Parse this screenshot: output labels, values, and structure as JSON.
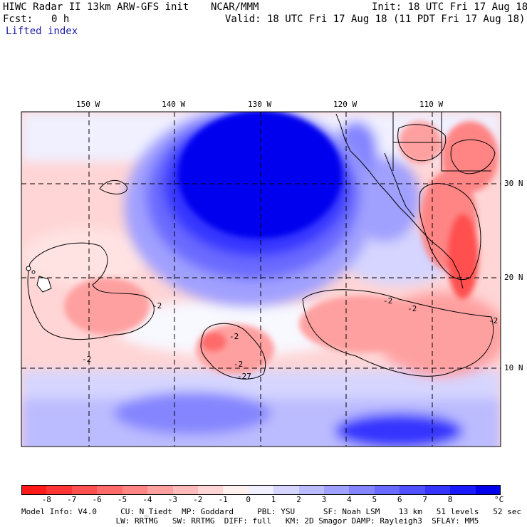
{
  "header": {
    "title": "HIWC Radar II 13km ARW-GFS init",
    "org": "NCAR/MMM",
    "init": "Init: 18 UTC Fri 17 Aug 18",
    "fcst_label": "Fcst:",
    "fcst_value": "0 h",
    "valid": "Valid: 18 UTC Fri 17 Aug 18 (11 PDT Fri 17 Aug 18)",
    "field": "Lifted index"
  },
  "map": {
    "lon_labels": [
      "150 W",
      "140 W",
      "130 W",
      "120 W",
      "110 W"
    ],
    "lat_labels": [
      "30 N",
      "20 N",
      "10 N"
    ],
    "contour_labels": [
      "-2",
      "-2",
      "-2",
      "-2",
      "-2",
      "-2",
      "-27",
      "-2"
    ],
    "colors": {
      "deep_blue": "#0000ee",
      "strong_red": "#ee2020",
      "neutral": "#ffffff"
    }
  },
  "colorbar": {
    "ticks": [
      "-8",
      "-7",
      "-6",
      "-5",
      "-4",
      "-3",
      "-2",
      "-1",
      "0",
      "1",
      "2",
      "3",
      "4",
      "5",
      "6",
      "7",
      "8"
    ],
    "unit": "°C",
    "colors": [
      "#ff1a1a",
      "#ff3535",
      "#ff5050",
      "#ff6a6a",
      "#ff8585",
      "#ffa0a0",
      "#ffbbbb",
      "#ffd5d5",
      "#fff0f0",
      "#f0f0ff",
      "#d5d5ff",
      "#bbbbff",
      "#a0a0ff",
      "#8585ff",
      "#6a6aff",
      "#5050ff",
      "#3535ff",
      "#1a1aff",
      "#0000ee"
    ]
  },
  "footer": {
    "line1": "Model Info: V4.0     CU: N_Tiedt  MP: Goddard     PBL: YSU      SF: Noah LSM    13 km   51 levels   52 sec",
    "line2": "                    LW: RRTMG   SW: RRTMG  DIFF: full   KM: 2D Smagor DAMP: Rayleigh3  SFLAY: MM5"
  }
}
